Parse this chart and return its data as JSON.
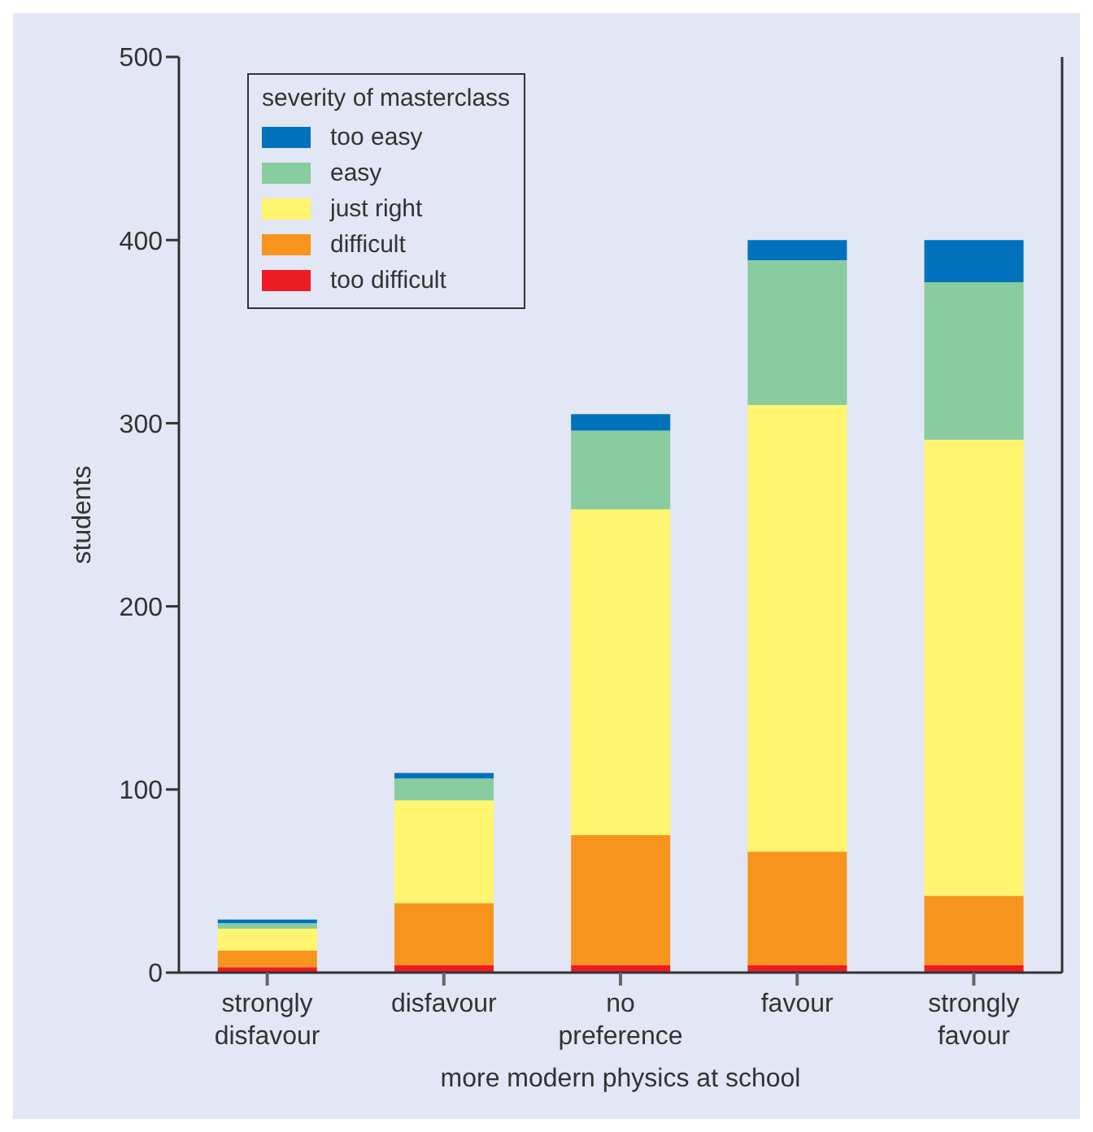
{
  "chart_data": {
    "type": "bar",
    "stacked": true,
    "xlabel": "more modern physics at school",
    "ylabel": "students",
    "legend_title": "severity of masterclass",
    "legend": "top left",
    "grid": false,
    "categories": [
      "strongly disfavour",
      "disfavour",
      "no preference",
      "favour",
      "strongly favour"
    ],
    "ylim": [
      0,
      500
    ],
    "yticks": [
      0,
      100,
      200,
      300,
      400,
      500
    ],
    "series": [
      {
        "name": "too difficult",
        "color": "#ed1c24",
        "values": [
          3,
          4,
          4,
          4,
          4
        ]
      },
      {
        "name": "difficult",
        "color": "#f7941e",
        "values": [
          9,
          34,
          71,
          62,
          38
        ]
      },
      {
        "name": "just right",
        "color": "#fff56e",
        "values": [
          12,
          56,
          178,
          244,
          249
        ]
      },
      {
        "name": "easy",
        "color": "#88cc9f",
        "values": [
          3,
          12,
          43,
          79,
          86
        ]
      },
      {
        "name": "too easy",
        "color": "#0072bc",
        "values": [
          2,
          3,
          9,
          11,
          23
        ]
      }
    ]
  }
}
